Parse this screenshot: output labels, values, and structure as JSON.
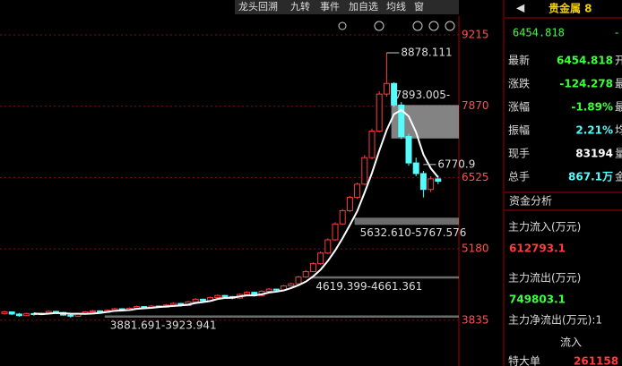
{
  "chart_data": {
    "type": "candlestick",
    "up_color": "#ff3c3c",
    "down_color": "#54fcfc",
    "ylim": [
      2970,
      9570
    ],
    "yticks": [
      3835,
      5180,
      6525,
      7870,
      9215
    ],
    "grid": true,
    "open": [
      3960,
      3990,
      3950,
      3920,
      3960,
      3940,
      3970,
      4000,
      3980,
      3930,
      3910,
      3960,
      3990,
      4010,
      3980,
      4020,
      4050,
      4020,
      4060,
      4090,
      4070,
      4100,
      4080,
      4120,
      4150,
      4110,
      4180,
      4230,
      4200,
      4260,
      4300,
      4280,
      4250,
      4320,
      4360,
      4300,
      4380,
      4420,
      4400,
      4480,
      4520,
      4650,
      4750,
      4900,
      5100,
      5350,
      5650,
      5900,
      6150,
      6400,
      6900,
      7400,
      8100,
      8300,
      7893,
      7300,
      6800,
      6600,
      6300,
      6500
    ],
    "high": [
      4010,
      4000,
      3970,
      3975,
      3970,
      3985,
      4020,
      4010,
      3990,
      3940,
      3975,
      4005,
      4030,
      4020,
      4035,
      4070,
      4060,
      4075,
      4110,
      4100,
      4120,
      4110,
      4140,
      4170,
      4160,
      4200,
      4250,
      4240,
      4280,
      4320,
      4310,
      4290,
      4340,
      4380,
      4370,
      4400,
      4440,
      4430,
      4500,
      4540,
      4670,
      4780,
      4930,
      5130,
      5380,
      5680,
      5930,
      6180,
      6430,
      6950,
      7450,
      8150,
      8878.111,
      8320,
      7950,
      7350,
      6900,
      6650,
      6550,
      6560
    ],
    "low": [
      3940,
      3930,
      3900,
      3910,
      3920,
      3930,
      3960,
      3965,
      3920,
      3880,
      3900,
      3950,
      3980,
      3965,
      3970,
      4010,
      4005,
      4010,
      4050,
      4055,
      4060,
      4065,
      4070,
      4110,
      4095,
      4100,
      4170,
      4185,
      4190,
      4250,
      4260,
      4230,
      4240,
      4310,
      4280,
      4290,
      4370,
      4380,
      4390,
      4470,
      4510,
      4630,
      4740,
      4880,
      5080,
      5330,
      5630,
      5870,
      6120,
      6380,
      6870,
      7380,
      8050,
      7850,
      7250,
      6750,
      6550,
      6150,
      6250,
      6400
    ],
    "close": [
      3990,
      3950,
      3920,
      3960,
      3940,
      3970,
      4000,
      3980,
      3930,
      3910,
      3960,
      3990,
      4010,
      3980,
      4020,
      4050,
      4020,
      4060,
      4090,
      4070,
      4100,
      4080,
      4120,
      4150,
      4110,
      4180,
      4230,
      4200,
      4260,
      4300,
      4280,
      4250,
      4320,
      4360,
      4300,
      4380,
      4420,
      4400,
      4480,
      4520,
      4650,
      4750,
      4900,
      5100,
      5350,
      5650,
      5900,
      6150,
      6400,
      6900,
      7400,
      8100,
      8300,
      7893.005,
      7300,
      6800,
      6600,
      6300,
      6500,
      6454.818
    ],
    "ma": {
      "color": "#ffffff",
      "values": [
        null,
        null,
        null,
        null,
        3964,
        3948,
        3958,
        3970,
        3964,
        3958,
        3956,
        3954,
        3960,
        3970,
        3992,
        4010,
        4016,
        4026,
        4048,
        4058,
        4068,
        4082,
        4092,
        4104,
        4112,
        4128,
        4158,
        4174,
        4196,
        4234,
        4254,
        4258,
        4282,
        4302,
        4302,
        4322,
        4356,
        4372,
        4396,
        4440,
        4494,
        4560,
        4660,
        4784,
        4950,
        5150,
        5380,
        5630,
        5890,
        6240,
        6610,
        7030,
        7420,
        7720,
        7800,
        7680,
        7380,
        6960,
        6700,
        6530
      ]
    },
    "annotations": [
      {
        "label": "8878.111",
        "value": 8878.111,
        "index": 52
      },
      {
        "label": "6770.9",
        "value": 6770.9,
        "index": 57
      }
    ],
    "ranges": [
      {
        "label": "7893.005-",
        "high": 7893.005,
        "low": 7262,
        "from": 53
      },
      {
        "label": "5632.610-5767.576",
        "low": 5632.61,
        "high": 5767.576,
        "from": 48
      },
      {
        "label": "4619.399-4661.361",
        "low": 4619.399,
        "high": 4661.361,
        "from": 42
      },
      {
        "label": "3881.691-3923.941",
        "low": 3881.691,
        "high": 3923.941,
        "from": 14
      }
    ]
  },
  "toolbar": [
    "龙头回溯",
    "九转",
    "事件",
    "加自选",
    "均线",
    "窗"
  ],
  "panel": {
    "title": "贵金属 8",
    "price": "6454.818",
    "price_tail": "-",
    "rows": [
      [
        "最新",
        "6454.818",
        "开"
      ],
      [
        "涨跌",
        "-124.278",
        "最"
      ],
      [
        "涨幅",
        "-1.89%",
        "最"
      ],
      [
        "振幅",
        "2.21%",
        "均"
      ],
      [
        "现手",
        "83194",
        "量"
      ],
      [
        "总手",
        "867.1万",
        "金"
      ]
    ],
    "section": "资金分析",
    "inflow_label": "主力流入(万元)",
    "inflow": "612793.1",
    "outflow_label": "主力流出(万元)",
    "outflow": "749803.1",
    "net_label": "主力净流出(万元):1",
    "sub_col": "流入",
    "sub_row": "特大单",
    "sub_value": "261158"
  }
}
